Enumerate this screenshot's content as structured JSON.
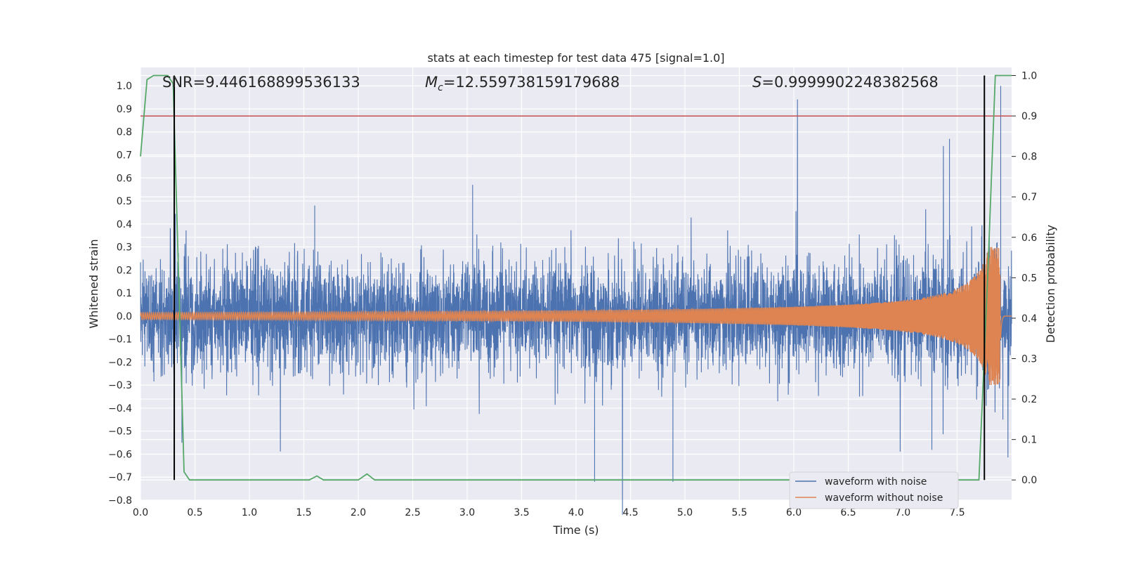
{
  "chart_data": {
    "type": "line",
    "title": "stats at each timestep for test data 475 [signal=1.0]",
    "xlabel": "Time (s)",
    "ylabel_left": "Whitened strain",
    "ylabel_right": "Detection probability",
    "xlim": [
      0.0,
      8.0
    ],
    "ylim_left": [
      -0.8,
      1.08
    ],
    "ylim_right": [
      -0.05,
      1.02
    ],
    "x_ticks": [
      "0.0",
      "0.5",
      "1.0",
      "1.5",
      "2.0",
      "2.5",
      "3.0",
      "3.5",
      "4.0",
      "4.5",
      "5.0",
      "5.5",
      "6.0",
      "6.5",
      "7.0",
      "7.5"
    ],
    "x_tick_values": [
      0.0,
      0.5,
      1.0,
      1.5,
      2.0,
      2.5,
      3.0,
      3.5,
      4.0,
      4.5,
      5.0,
      5.5,
      6.0,
      6.5,
      7.0,
      7.5
    ],
    "y_left_ticks": [
      "1.0",
      "0.9",
      "0.8",
      "0.7",
      "0.6",
      "0.5",
      "0.4",
      "0.3",
      "0.2",
      "0.1",
      "0.0",
      "−0.1",
      "−0.2",
      "−0.3",
      "−0.4",
      "−0.5",
      "−0.6",
      "−0.7",
      "−0.8"
    ],
    "y_left_tick_values": [
      1.0,
      0.9,
      0.8,
      0.7,
      0.6,
      0.5,
      0.4,
      0.3,
      0.2,
      0.1,
      0.0,
      -0.1,
      -0.2,
      -0.3,
      -0.4,
      -0.5,
      -0.6,
      -0.7,
      -0.8
    ],
    "y_right_ticks": [
      "1.0",
      "0.9",
      "0.8",
      "0.7",
      "0.6",
      "0.5",
      "0.4",
      "0.3",
      "0.2",
      "0.1",
      "0.0"
    ],
    "y_right_tick_values": [
      1.0,
      0.9,
      0.8,
      0.7,
      0.6,
      0.5,
      0.4,
      0.3,
      0.2,
      0.1,
      0.0
    ],
    "grid": true,
    "legend_position": "bottom-right",
    "annotations": {
      "snr": "SNR=9.446168899536133",
      "mc_label": "M",
      "mc_sub": "c",
      "mc_value": "=12.559738159179688",
      "s_label": "S",
      "s_value": "=0.9999902248382568"
    },
    "series": [
      {
        "name": "waveform with noise",
        "color": "#4c72b0",
        "axis": "left",
        "description": "noisy whitened strain, roughly within -0.45 to 0.5 with spikes up to 1.0 near 7.9 s",
        "envelope_low": -0.35,
        "envelope_high": 0.35,
        "spikes": [
          [
            0.32,
            0.43
          ],
          [
            1.6,
            0.48
          ],
          [
            3.05,
            0.57
          ],
          [
            4.17,
            -0.72
          ],
          [
            4.89,
            -0.72
          ],
          [
            7.43,
            0.77
          ],
          [
            7.9,
            1.0
          ],
          [
            0.38,
            -0.55
          ],
          [
            7.92,
            -0.45
          ]
        ]
      },
      {
        "name": "waveform without noise",
        "color": "#dd8452",
        "axis": "left",
        "description": "chirp signal, amplitude growing from 0.02 to ~0.3 at merger near 7.9 s",
        "merger_time": 7.9,
        "amp_start": 0.015,
        "amp_peak": 0.3
      },
      {
        "name": "",
        "color": "#55a868",
        "axis": "right",
        "x": [
          0.0,
          0.06,
          0.12,
          0.25,
          0.3,
          0.35,
          0.4,
          0.45,
          1.0,
          1.55,
          1.62,
          1.68,
          1.75,
          2.0,
          2.08,
          2.15,
          2.5,
          7.7,
          7.78,
          7.85,
          7.9,
          8.0
        ],
        "y": [
          0.8,
          0.99,
          1.0,
          1.0,
          0.98,
          0.5,
          0.02,
          0.0,
          0.0,
          0.0,
          0.01,
          0.0,
          0.0,
          0.0,
          0.015,
          0.0,
          0.0,
          0.0,
          0.5,
          1.0,
          1.0,
          1.0
        ]
      }
    ],
    "threshold_line": {
      "value": 0.9,
      "axis": "right",
      "color": "#c44e52"
    },
    "vertical_lines": {
      "x": [
        0.31,
        7.75
      ],
      "color": "#000000",
      "y_top_right": 1.0,
      "y_bottom_right": 0.0
    }
  }
}
